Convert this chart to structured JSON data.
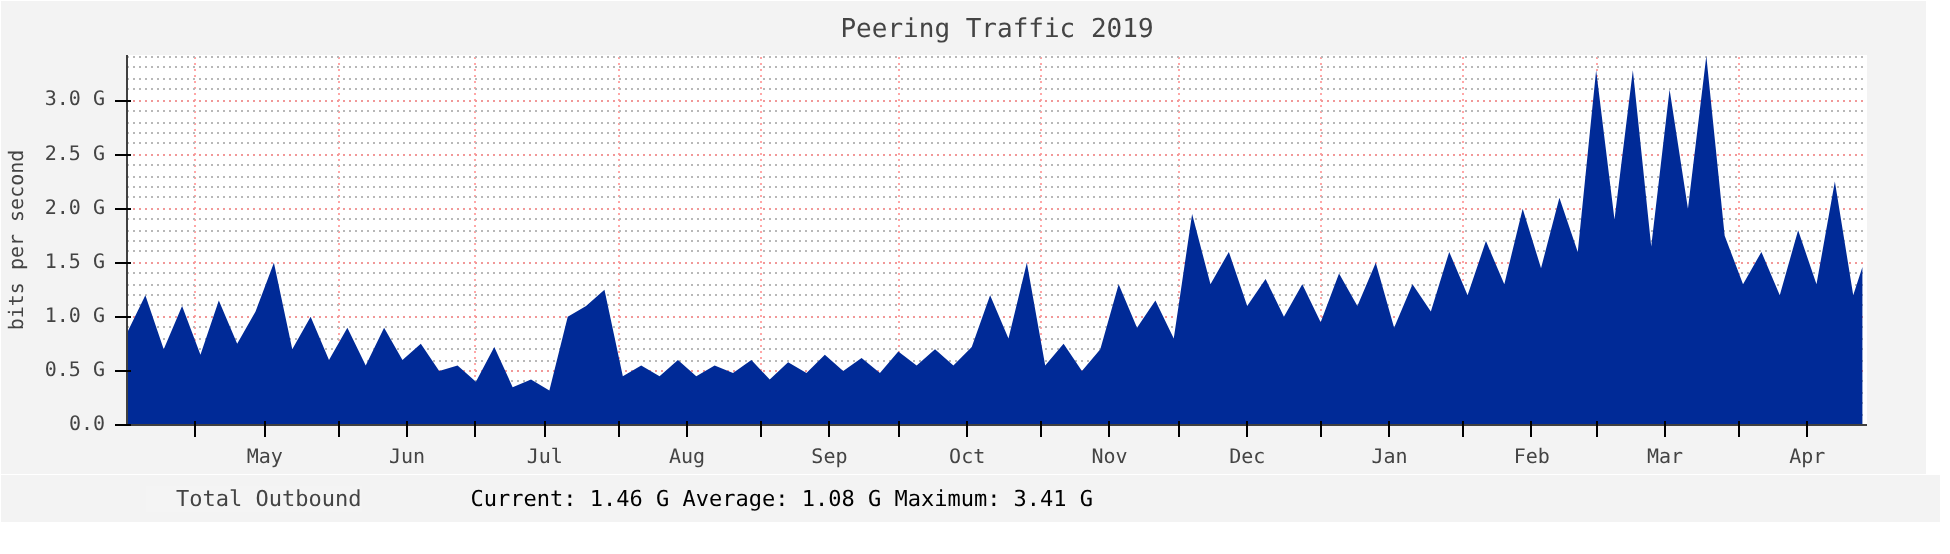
{
  "chart_data": {
    "type": "area",
    "title": "Peering Traffic 2019",
    "ylabel": "bits per second",
    "x": [
      "2019-04-16",
      "2019-04-20",
      "2019-04-24",
      "2019-04-28",
      "2019-05-02",
      "2019-05-06",
      "2019-05-10",
      "2019-05-14",
      "2019-05-18",
      "2019-05-22",
      "2019-05-26",
      "2019-05-30",
      "2019-06-03",
      "2019-06-07",
      "2019-06-11",
      "2019-06-15",
      "2019-06-19",
      "2019-06-23",
      "2019-06-27",
      "2019-07-01",
      "2019-07-05",
      "2019-07-09",
      "2019-07-13",
      "2019-07-17",
      "2019-07-21",
      "2019-07-25",
      "2019-07-29",
      "2019-08-02",
      "2019-08-06",
      "2019-08-10",
      "2019-08-14",
      "2019-08-18",
      "2019-08-22",
      "2019-08-26",
      "2019-08-30",
      "2019-09-03",
      "2019-09-07",
      "2019-09-11",
      "2019-09-15",
      "2019-09-19",
      "2019-09-23",
      "2019-09-27",
      "2019-10-01",
      "2019-10-05",
      "2019-10-09",
      "2019-10-13",
      "2019-10-17",
      "2019-10-21",
      "2019-10-25",
      "2019-10-29",
      "2019-11-02",
      "2019-11-06",
      "2019-11-10",
      "2019-11-14",
      "2019-11-18",
      "2019-11-22",
      "2019-11-26",
      "2019-11-30",
      "2019-12-04",
      "2019-12-08",
      "2019-12-12",
      "2019-12-16",
      "2019-12-20",
      "2019-12-24",
      "2019-12-28",
      "2020-01-01",
      "2020-01-05",
      "2020-01-09",
      "2020-01-13",
      "2020-01-17",
      "2020-01-21",
      "2020-01-25",
      "2020-01-29",
      "2020-02-02",
      "2020-02-06",
      "2020-02-10",
      "2020-02-14",
      "2020-02-18",
      "2020-02-22",
      "2020-02-26",
      "2020-03-01",
      "2020-03-05",
      "2020-03-09",
      "2020-03-13",
      "2020-03-17",
      "2020-03-21",
      "2020-03-25",
      "2020-03-29",
      "2020-04-02",
      "2020-04-06",
      "2020-04-10",
      "2020-04-14",
      "2020-04-18",
      "2020-04-22",
      "2020-04-26",
      "2020-04-28"
    ],
    "series": [
      {
        "name": "Total Outbound",
        "color": "#002a97",
        "values": [
          0.85,
          1.2,
          0.7,
          1.1,
          0.65,
          1.15,
          0.75,
          1.05,
          1.5,
          0.7,
          1.0,
          0.6,
          0.9,
          0.55,
          0.9,
          0.6,
          0.75,
          0.5,
          0.55,
          0.4,
          0.72,
          0.35,
          0.42,
          0.32,
          1.0,
          1.1,
          1.25,
          0.45,
          0.55,
          0.45,
          0.6,
          0.45,
          0.55,
          0.48,
          0.6,
          0.42,
          0.58,
          0.48,
          0.65,
          0.5,
          0.62,
          0.48,
          0.68,
          0.55,
          0.7,
          0.55,
          0.72,
          1.2,
          0.8,
          1.5,
          0.55,
          0.75,
          0.5,
          0.7,
          1.3,
          0.9,
          1.15,
          0.8,
          1.95,
          1.3,
          1.6,
          1.1,
          1.35,
          1.0,
          1.3,
          0.95,
          1.4,
          1.1,
          1.5,
          0.9,
          1.3,
          1.05,
          1.6,
          1.2,
          1.7,
          1.3,
          2.0,
          1.45,
          2.1,
          1.6,
          3.28,
          1.9,
          3.28,
          1.65,
          3.1,
          2.0,
          3.41,
          1.75,
          1.3,
          1.6,
          1.2,
          1.8,
          1.3,
          2.25,
          1.2,
          1.46
        ]
      }
    ],
    "xlim": [
      "2019-04-16",
      "2020-04-29"
    ],
    "xticks": [
      {
        "value": "2019-05-01",
        "label": null
      },
      {
        "value": "2019-05-16",
        "label": "May"
      },
      {
        "value": "2019-06-01",
        "label": null
      },
      {
        "value": "2019-06-16",
        "label": "Jun"
      },
      {
        "value": "2019-07-01",
        "label": null
      },
      {
        "value": "2019-07-16",
        "label": "Jul"
      },
      {
        "value": "2019-08-01",
        "label": null
      },
      {
        "value": "2019-08-16",
        "label": "Aug"
      },
      {
        "value": "2019-09-01",
        "label": null
      },
      {
        "value": "2019-09-16",
        "label": "Sep"
      },
      {
        "value": "2019-10-01",
        "label": null
      },
      {
        "value": "2019-10-16",
        "label": "Oct"
      },
      {
        "value": "2019-11-01",
        "label": null
      },
      {
        "value": "2019-11-16",
        "label": "Nov"
      },
      {
        "value": "2019-12-01",
        "label": null
      },
      {
        "value": "2019-12-16",
        "label": "Dec"
      },
      {
        "value": "2020-01-01",
        "label": null
      },
      {
        "value": "2020-01-16",
        "label": "Jan"
      },
      {
        "value": "2020-02-01",
        "label": null
      },
      {
        "value": "2020-02-16",
        "label": "Feb"
      },
      {
        "value": "2020-03-01",
        "label": null
      },
      {
        "value": "2020-03-16",
        "label": "Mar"
      },
      {
        "value": "2020-04-01",
        "label": null
      },
      {
        "value": "2020-04-16",
        "label": "Apr"
      }
    ],
    "ylim": [
      0,
      3.42
    ],
    "yticks": [
      {
        "value": 0,
        "label": "0.0"
      },
      {
        "value": 0.5,
        "label": "0.5 G"
      },
      {
        "value": 1.0,
        "label": "1.0 G"
      },
      {
        "value": 1.5,
        "label": "1.5 G"
      },
      {
        "value": 2.0,
        "label": "2.0 G"
      },
      {
        "value": 2.5,
        "label": "2.5 G"
      },
      {
        "value": 3.0,
        "label": "3.0 G"
      }
    ],
    "grid": true,
    "legend": "bottom",
    "annotations": [
      "Current:    1.46 G  Average:    1.08 G  Maximum:    3.41 G"
    ]
  }
}
